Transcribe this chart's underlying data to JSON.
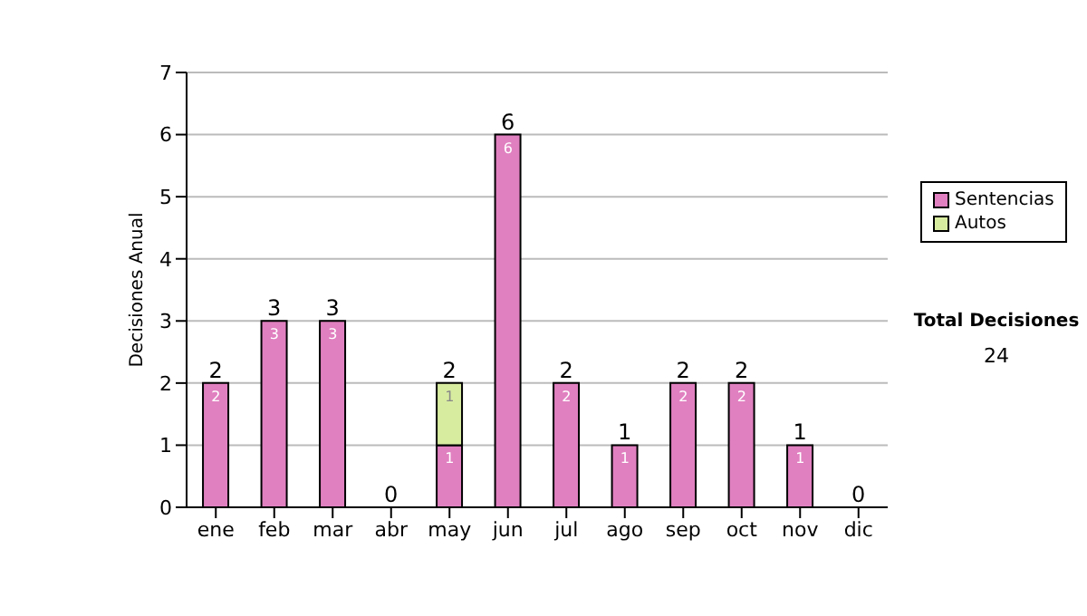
{
  "chart_data": {
    "type": "bar",
    "stacked": true,
    "ylabel": "Decisiones Anual",
    "categories": [
      "ene",
      "feb",
      "mar",
      "abr",
      "may",
      "jun",
      "jul",
      "ago",
      "sep",
      "oct",
      "nov",
      "dic"
    ],
    "series": [
      {
        "name": "Sentencias",
        "color": "#e080c0",
        "values": [
          2,
          3,
          3,
          0,
          1,
          6,
          2,
          1,
          2,
          2,
          1,
          0
        ],
        "value_labels": [
          "2",
          "3",
          "3",
          null,
          "1",
          "6",
          "2",
          "1",
          "2",
          "2",
          "1",
          null
        ]
      },
      {
        "name": "Autos",
        "color": "#d8eca0",
        "values": [
          0,
          0,
          0,
          0,
          1,
          0,
          0,
          0,
          0,
          0,
          0,
          0
        ],
        "value_labels": [
          null,
          null,
          null,
          null,
          "1",
          null,
          null,
          null,
          null,
          null,
          null,
          null
        ]
      }
    ],
    "totals": [
      "2",
      "3",
      "3",
      "0",
      "2",
      "6",
      "2",
      "1",
      "2",
      "2",
      "1",
      "0"
    ],
    "ylim": [
      0,
      7
    ],
    "yticks": [
      0,
      1,
      2,
      3,
      4,
      5,
      6,
      7
    ],
    "grid": "y",
    "legend": "right",
    "annotations": [
      "Total Decisiones",
      "24"
    ]
  }
}
